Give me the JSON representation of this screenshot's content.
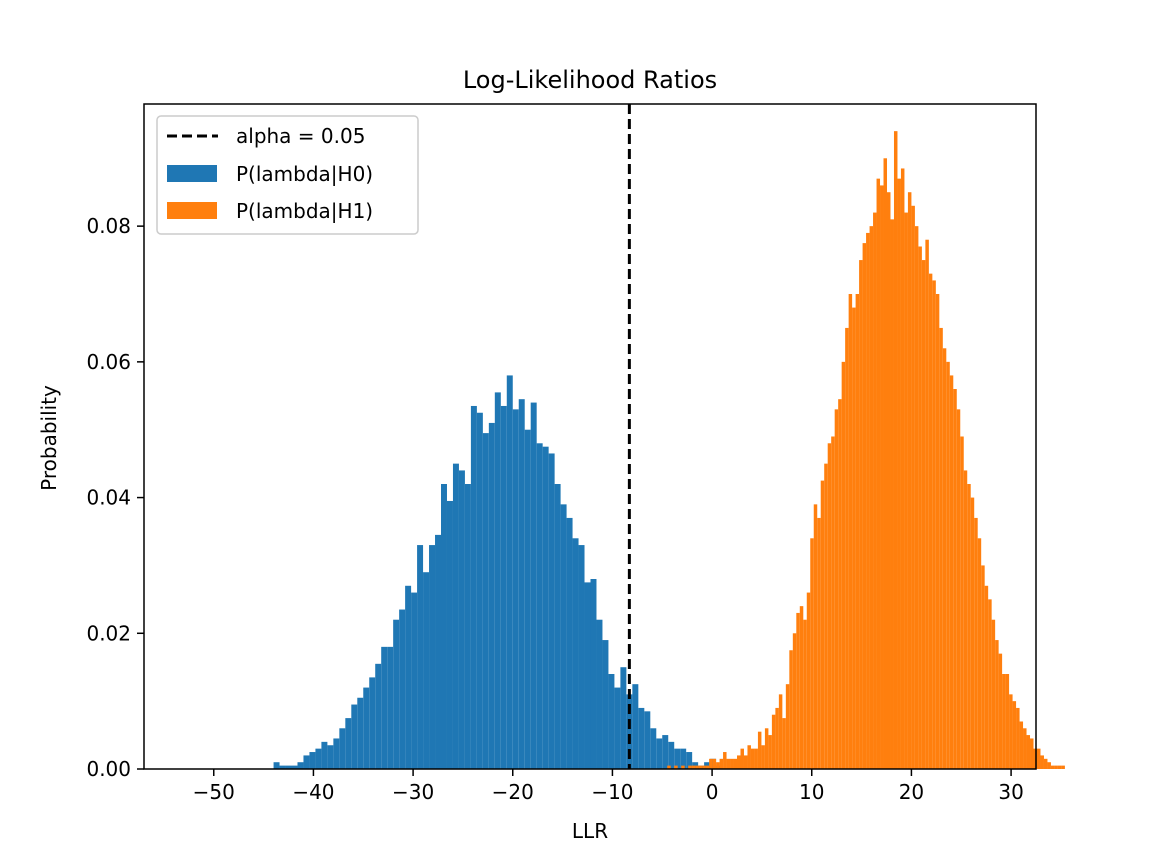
{
  "chart_data": {
    "type": "bar",
    "title": "Log-Likelihood Ratios",
    "xlabel": "LLR",
    "ylabel": "Probability",
    "xlim": [
      -57,
      32.5
    ],
    "ylim": [
      0,
      0.098
    ],
    "xticks": [
      -50,
      -40,
      -30,
      -20,
      -10,
      0,
      10,
      20,
      30
    ],
    "xtick_labels": [
      "−50",
      "−40",
      "−30",
      "−20",
      "−10",
      "0",
      "10",
      "20",
      "30"
    ],
    "yticks": [
      0,
      0.02,
      0.04,
      0.06,
      0.08
    ],
    "ytick_labels": [
      "0.00",
      "0.02",
      "0.04",
      "0.06",
      "0.08"
    ],
    "grid": false,
    "legend_position": "top-left",
    "threshold": {
      "label": "alpha = 0.05",
      "x": -8.3,
      "color": "#000000",
      "style": "dashed"
    },
    "series": [
      {
        "name": "P(lambda|H0)",
        "color": "#1f77b4",
        "bin_start": -44.0,
        "bin_width": 0.6,
        "values": [
          0.001,
          0.0005,
          0.0005,
          0.0005,
          0.001,
          0.002,
          0.0025,
          0.003,
          0.004,
          0.0035,
          0.0045,
          0.006,
          0.0075,
          0.0095,
          0.0105,
          0.012,
          0.0135,
          0.0155,
          0.018,
          0.018,
          0.022,
          0.0235,
          0.027,
          0.026,
          0.033,
          0.029,
          0.033,
          0.0345,
          0.042,
          0.0395,
          0.045,
          0.044,
          0.042,
          0.0535,
          0.0525,
          0.0495,
          0.051,
          0.0555,
          0.0535,
          0.058,
          0.053,
          0.0545,
          0.05,
          0.054,
          0.048,
          0.0475,
          0.0465,
          0.042,
          0.039,
          0.037,
          0.034,
          0.033,
          0.0275,
          0.028,
          0.022,
          0.019,
          0.014,
          0.012,
          0.015,
          0.011,
          0.0125,
          0.009,
          0.0085,
          0.006,
          0.0045,
          0.005,
          0.004,
          0.003,
          0.003,
          0.0025,
          0.001,
          0.0005,
          0.001,
          0.0015,
          0.0005
        ]
      },
      {
        "name": "P(lambda|H1)",
        "color": "#ff7f0e",
        "bin_start": -4.5,
        "bin_width": 0.35,
        "values": [
          0.0005,
          0.0,
          0.0005,
          0.0,
          0.0005,
          0.0,
          0.0005,
          0.0005,
          0.0005,
          0.0005,
          0.0005,
          0.0005,
          0.0015,
          0.0015,
          0.001,
          0.0015,
          0.0025,
          0.0015,
          0.0015,
          0.0015,
          0.002,
          0.003,
          0.002,
          0.0035,
          0.003,
          0.003,
          0.0055,
          0.0035,
          0.006,
          0.005,
          0.008,
          0.009,
          0.011,
          0.0075,
          0.0125,
          0.0175,
          0.02,
          0.023,
          0.024,
          0.022,
          0.026,
          0.034,
          0.039,
          0.037,
          0.0425,
          0.045,
          0.048,
          0.049,
          0.053,
          0.0545,
          0.06,
          0.065,
          0.07,
          0.068,
          0.07,
          0.075,
          0.0775,
          0.079,
          0.08,
          0.082,
          0.087,
          0.086,
          0.09,
          0.085,
          0.081,
          0.094,
          0.087,
          0.0885,
          0.082,
          0.085,
          0.083,
          0.08,
          0.077,
          0.075,
          0.078,
          0.073,
          0.072,
          0.07,
          0.065,
          0.062,
          0.06,
          0.058,
          0.056,
          0.053,
          0.049,
          0.044,
          0.042,
          0.04,
          0.037,
          0.034,
          0.03,
          0.027,
          0.025,
          0.022,
          0.019,
          0.017,
          0.014,
          0.014,
          0.011,
          0.01,
          0.009,
          0.007,
          0.006,
          0.005,
          0.0045,
          0.003,
          0.003,
          0.002,
          0.0015,
          0.001,
          0.0005,
          0.0005,
          0.0005,
          0.0005
        ]
      }
    ]
  }
}
